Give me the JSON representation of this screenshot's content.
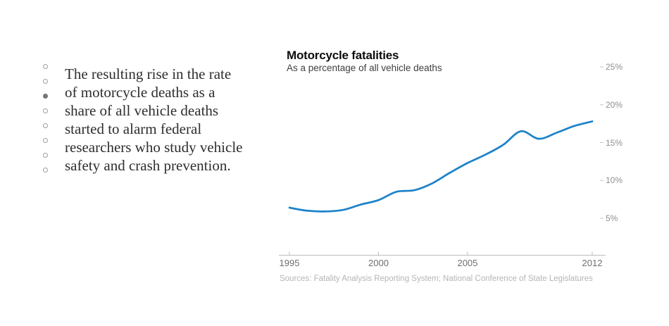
{
  "article": {
    "text": "The resulting rise in the rate\nof motorcycle deaths as a\nshare of all vehicle deaths\nstarted to alarm federal\nresearchers who study vehicle\nsafety and crash prevention.",
    "dots": {
      "count": 8,
      "active_index": 2
    }
  },
  "chart": {
    "title": "Motorcycle fatalities",
    "subtitle": "As a percentage of all vehicle deaths",
    "source": "Sources: Fatality Analysis Reporting System; National Conference of State Legislatures"
  },
  "chart_data": {
    "type": "line",
    "title": "Motorcycle fatalities",
    "subtitle": "As a percentage of all vehicle deaths",
    "series_name": "Motorcycle deaths as a percentage of all vehicle deaths",
    "x": [
      1995,
      1996,
      1997,
      1998,
      1999,
      2000,
      2001,
      2002,
      2003,
      2004,
      2005,
      2006,
      2007,
      2008,
      2009,
      2010,
      2011,
      2012
    ],
    "values": [
      6.4,
      6.0,
      5.9,
      6.1,
      6.8,
      7.4,
      8.5,
      8.7,
      9.6,
      11.0,
      12.3,
      13.4,
      14.7,
      16.5,
      15.5,
      16.3,
      17.2,
      17.8
    ],
    "x_ticks": [
      1995,
      2000,
      2005,
      2012
    ],
    "y_ticks": [
      5,
      10,
      15,
      20,
      25
    ],
    "y_tick_suffix": "%",
    "xlim": [
      1995,
      2012
    ],
    "ylim": [
      0,
      26
    ],
    "grid": false,
    "legend": false,
    "line_color": "#1d83c9",
    "axis_color": "#bcbcbc"
  }
}
